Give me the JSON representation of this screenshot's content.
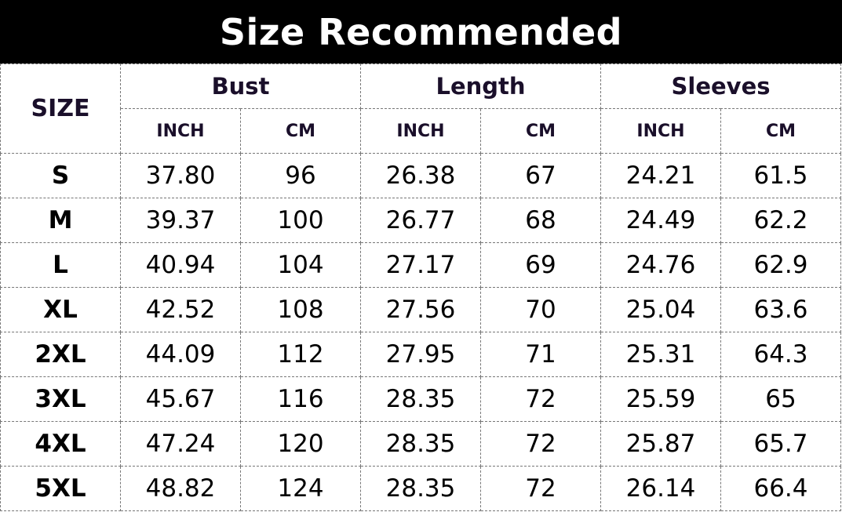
{
  "title": "Size Recommended",
  "headers": {
    "size": "SIZE",
    "groups": [
      "Bust",
      "Length",
      "Sleeves"
    ],
    "units": [
      "INCH",
      "CM",
      "INCH",
      "CM",
      "INCH",
      "CM"
    ]
  },
  "rows": [
    [
      "S",
      "37.80",
      "96",
      "26.38",
      "67",
      "24.21",
      "61.5"
    ],
    [
      "M",
      "39.37",
      "100",
      "26.77",
      "68",
      "24.49",
      "62.2"
    ],
    [
      "L",
      "40.94",
      "104",
      "27.17",
      "69",
      "24.76",
      "62.9"
    ],
    [
      "XL",
      "42.52",
      "108",
      "27.56",
      "70",
      "25.04",
      "63.6"
    ],
    [
      "2XL",
      "44.09",
      "112",
      "27.95",
      "71",
      "25.31",
      "64.3"
    ],
    [
      "3XL",
      "45.67",
      "116",
      "28.35",
      "72",
      "25.59",
      "65"
    ],
    [
      "4XL",
      "47.24",
      "120",
      "28.35",
      "72",
      "25.87",
      "65.7"
    ],
    [
      "5XL",
      "48.82",
      "124",
      "28.35",
      "72",
      "26.14",
      "66.4"
    ]
  ]
}
